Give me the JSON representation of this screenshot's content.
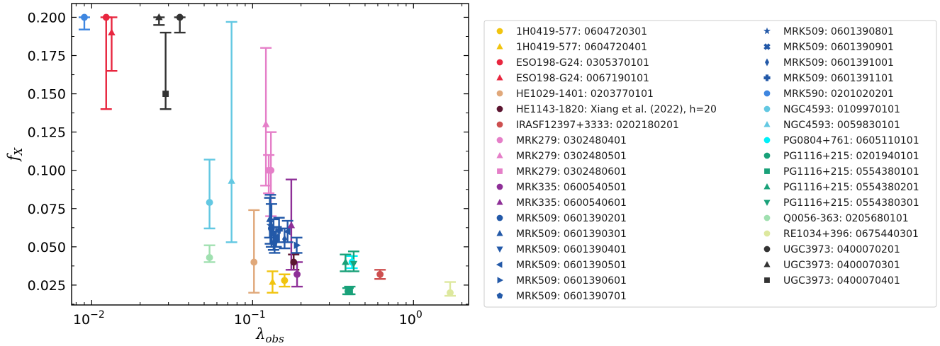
{
  "chart_data": {
    "type": "scatter",
    "x_scale": "log",
    "xlim": [
      0.0075,
      2.2
    ],
    "ylim": [
      0.012,
      0.209
    ],
    "xlabel": "λobs",
    "ylabel": "fX",
    "xticks": [
      {
        "value": 0.01,
        "label": "10",
        "exp": "−2"
      },
      {
        "value": 0.1,
        "label": "10",
        "exp": "−1"
      },
      {
        "value": 1,
        "label": "10",
        "exp": "0"
      }
    ],
    "yticks": [
      "0.025",
      "0.050",
      "0.075",
      "0.100",
      "0.125",
      "0.150",
      "0.175",
      "0.200"
    ],
    "legend_position": "right-outside",
    "series": [
      {
        "name": "1H0419-577: 0604720301",
        "color": "#f1c40f",
        "marker": "circle",
        "points": [
          {
            "x": 0.158,
            "y": 0.028,
            "lo": 0.024,
            "hi": 0.032
          }
        ]
      },
      {
        "name": "1H0419-577: 0604720401",
        "color": "#f1c40f",
        "marker": "triangle-up",
        "points": [
          {
            "x": 0.133,
            "y": 0.027,
            "lo": 0.02,
            "hi": 0.034
          }
        ]
      },
      {
        "name": "ESO198-G24: 0305370101",
        "color": "#e8263f",
        "marker": "circle",
        "points": [
          {
            "x": 0.0123,
            "y": 0.2,
            "lo": 0.14,
            "hi": 0.2
          }
        ]
      },
      {
        "name": "ESO198-G24: 0067190101",
        "color": "#e8263f",
        "marker": "triangle-up",
        "points": [
          {
            "x": 0.0133,
            "y": 0.19,
            "lo": 0.165,
            "hi": 0.2
          }
        ]
      },
      {
        "name": "HE1029-1401: 0203770101",
        "color": "#e0a87a",
        "marker": "circle",
        "points": [
          {
            "x": 0.102,
            "y": 0.04,
            "lo": 0.02,
            "hi": 0.074
          }
        ]
      },
      {
        "name": "HE1143-1820: Xiang et al. (2022), h=20",
        "color": "#5c1631",
        "marker": "circle",
        "points": [
          {
            "x": 0.18,
            "y": 0.04,
            "lo": 0.035,
            "hi": 0.045
          }
        ]
      },
      {
        "name": "IRASF12397+3333: 0202180201",
        "color": "#cd4f4f",
        "marker": "circle",
        "points": [
          {
            "x": 0.62,
            "y": 0.032,
            "lo": 0.029,
            "hi": 0.035
          }
        ]
      },
      {
        "name": "MRK279: 0302480401",
        "color": "#e57fc8",
        "marker": "circle",
        "points": [
          {
            "x": 0.13,
            "y": 0.1,
            "lo": 0.07,
            "hi": 0.125
          }
        ]
      },
      {
        "name": "MRK279: 0302480501",
        "color": "#e57fc8",
        "marker": "triangle-up",
        "points": [
          {
            "x": 0.121,
            "y": 0.13,
            "lo": 0.09,
            "hi": 0.18
          }
        ]
      },
      {
        "name": "MRK279: 0302480601",
        "color": "#e57fc8",
        "marker": "square",
        "points": [
          {
            "x": 0.126,
            "y": 0.1,
            "lo": 0.085,
            "hi": 0.11
          }
        ]
      },
      {
        "name": "MRK335: 0600540501",
        "color": "#8e2f97",
        "marker": "circle",
        "points": [
          {
            "x": 0.189,
            "y": 0.032,
            "lo": 0.024,
            "hi": 0.04
          }
        ]
      },
      {
        "name": "MRK335: 0600540601",
        "color": "#8e2f97",
        "marker": "triangle-up",
        "points": [
          {
            "x": 0.174,
            "y": 0.064,
            "lo": 0.035,
            "hi": 0.094
          }
        ]
      },
      {
        "name": "MRK509: 0601390201",
        "color": "#2359a8",
        "marker": "circle",
        "points": [
          {
            "x": 0.131,
            "y": 0.062,
            "lo": 0.05,
            "hi": 0.078
          }
        ]
      },
      {
        "name": "MRK509: 0601390301",
        "color": "#2359a8",
        "marker": "triangle-up",
        "points": [
          {
            "x": 0.128,
            "y": 0.068,
            "lo": 0.056,
            "hi": 0.082
          }
        ]
      },
      {
        "name": "MRK509: 0601390401",
        "color": "#2359a8",
        "marker": "triangle-down",
        "points": [
          {
            "x": 0.135,
            "y": 0.058,
            "lo": 0.048,
            "hi": 0.068
          }
        ]
      },
      {
        "name": "MRK509: 0601390501",
        "color": "#2359a8",
        "marker": "triangle-left",
        "points": [
          {
            "x": 0.165,
            "y": 0.06,
            "lo": 0.053,
            "hi": 0.067
          }
        ]
      },
      {
        "name": "MRK509: 0601390601",
        "color": "#2359a8",
        "marker": "triangle-right",
        "points": [
          {
            "x": 0.188,
            "y": 0.051,
            "lo": 0.046,
            "hi": 0.056
          }
        ]
      },
      {
        "name": "MRK509: 0601390701",
        "color": "#2359a8",
        "marker": "pentagon",
        "points": [
          {
            "x": 0.137,
            "y": 0.053,
            "lo": 0.046,
            "hi": 0.06
          }
        ]
      },
      {
        "name": "MRK509: 0601390801",
        "color": "#2359a8",
        "marker": "star",
        "points": [
          {
            "x": 0.129,
            "y": 0.064,
            "lo": 0.052,
            "hi": 0.084
          }
        ]
      },
      {
        "name": "MRK509: 0601390901",
        "color": "#2359a8",
        "marker": "x",
        "points": [
          {
            "x": 0.14,
            "y": 0.056,
            "lo": 0.05,
            "hi": 0.063
          }
        ]
      },
      {
        "name": "MRK509: 0601391001",
        "color": "#2359a8",
        "marker": "diamond",
        "points": [
          {
            "x": 0.158,
            "y": 0.055,
            "lo": 0.049,
            "hi": 0.062
          }
        ]
      },
      {
        "name": "MRK509: 0601391101",
        "color": "#2359a8",
        "marker": "plus",
        "points": [
          {
            "x": 0.146,
            "y": 0.061,
            "lo": 0.053,
            "hi": 0.069
          }
        ]
      },
      {
        "name": "MRK590: 0201020201",
        "color": "#3e86e0",
        "marker": "circle",
        "points": [
          {
            "x": 0.009,
            "y": 0.2,
            "lo": 0.192,
            "hi": 0.2
          }
        ]
      },
      {
        "name": "NGC4593: 0109970101",
        "color": "#63c8e2",
        "marker": "circle",
        "points": [
          {
            "x": 0.054,
            "y": 0.079,
            "lo": 0.062,
            "hi": 0.107
          }
        ]
      },
      {
        "name": "NGC4593: 0059830101",
        "color": "#63c8e2",
        "marker": "triangle-up",
        "points": [
          {
            "x": 0.074,
            "y": 0.093,
            "lo": 0.053,
            "hi": 0.197
          }
        ]
      },
      {
        "name": "PG0804+761: 0605110101",
        "color": "#00f0f8",
        "marker": "circle",
        "points": [
          {
            "x": 0.415,
            "y": 0.04,
            "lo": 0.036,
            "hi": 0.044
          }
        ]
      },
      {
        "name": "PG1116+215: 0201940101",
        "color": "#19a179",
        "marker": "circle",
        "points": [
          {
            "x": 0.392,
            "y": 0.021,
            "lo": 0.019,
            "hi": 0.023
          }
        ]
      },
      {
        "name": "PG1116+215: 0554380101",
        "color": "#19a179",
        "marker": "square",
        "points": [
          {
            "x": 0.402,
            "y": 0.021,
            "lo": 0.019,
            "hi": 0.024
          }
        ]
      },
      {
        "name": "PG1116+215: 0554380201",
        "color": "#19a179",
        "marker": "triangle-up",
        "points": [
          {
            "x": 0.378,
            "y": 0.04,
            "lo": 0.034,
            "hi": 0.045
          }
        ]
      },
      {
        "name": "PG1116+215: 0554380301",
        "color": "#19a179",
        "marker": "triangle-down",
        "points": [
          {
            "x": 0.425,
            "y": 0.039,
            "lo": 0.034,
            "hi": 0.047
          }
        ]
      },
      {
        "name": "Q0056-363: 0205680101",
        "color": "#a0e0b0",
        "marker": "circle",
        "points": [
          {
            "x": 0.054,
            "y": 0.043,
            "lo": 0.04,
            "hi": 0.051
          }
        ]
      },
      {
        "name": "RE1034+396: 0675440301",
        "color": "#dde89e",
        "marker": "circle",
        "points": [
          {
            "x": 1.69,
            "y": 0.02,
            "lo": 0.018,
            "hi": 0.027
          }
        ]
      },
      {
        "name": "UGC3973: 0400070201",
        "color": "#333333",
        "marker": "circle",
        "points": [
          {
            "x": 0.0353,
            "y": 0.2,
            "lo": 0.19,
            "hi": 0.2
          }
        ]
      },
      {
        "name": "UGC3973: 0400070301",
        "color": "#333333",
        "marker": "triangle-up",
        "points": [
          {
            "x": 0.0262,
            "y": 0.2,
            "lo": 0.195,
            "hi": 0.2
          }
        ]
      },
      {
        "name": "UGC3973: 0400070401",
        "color": "#333333",
        "marker": "square",
        "points": [
          {
            "x": 0.0288,
            "y": 0.15,
            "lo": 0.14,
            "hi": 0.19
          }
        ]
      }
    ]
  }
}
